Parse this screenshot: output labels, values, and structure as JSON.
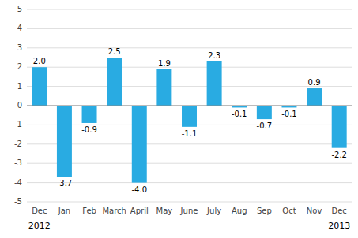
{
  "chart_data": {
    "type": "bar",
    "categories": [
      "Dec",
      "Jan",
      "Feb",
      "March",
      "April",
      "May",
      "June",
      "July",
      "Aug",
      "Sep",
      "Oct",
      "Nov",
      "Dec"
    ],
    "values": [
      2.0,
      -3.7,
      -0.9,
      2.5,
      -4.0,
      1.9,
      -1.1,
      2.3,
      -0.1,
      -0.7,
      -0.1,
      0.9,
      -2.2
    ],
    "value_labels": [
      "2.0",
      "-3.7",
      "-0.9",
      "2.5",
      "-4.0",
      "1.9",
      "-1.1",
      "2.3",
      "-0.1",
      "-0.7",
      "-0.1",
      "0.9",
      "-2.2"
    ],
    "color": "#29abe2",
    "ylim": [
      -5,
      5
    ],
    "yticks": [
      -5,
      -4,
      -3,
      -2,
      -1,
      0,
      1,
      2,
      3,
      4,
      5
    ],
    "grid": true,
    "data_labels": true,
    "annotations": [
      {
        "text": "2012",
        "x": 0
      },
      {
        "text": "2013",
        "x": 12
      }
    ]
  }
}
